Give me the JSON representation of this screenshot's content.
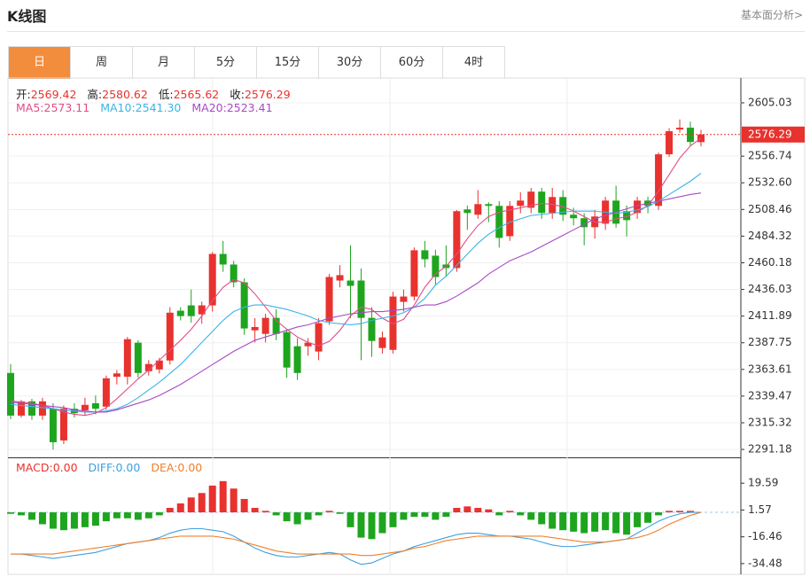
{
  "header": {
    "title": "K线图",
    "link": "基本面分析>"
  },
  "tabs": [
    "日",
    "周",
    "月",
    "5分",
    "15分",
    "30分",
    "60分",
    "4时"
  ],
  "active_tab": 0,
  "chart_data": [
    {
      "type": "candlestick",
      "ohlc_labels": [
        "开:",
        "高:",
        "低:",
        "收:"
      ],
      "up_color": "#e8322e",
      "down_color": "#1ea51e",
      "open": [
        2360.4,
        2321.8,
        2334.7,
        2321.8,
        2328.2,
        2299.3,
        2328,
        2326.6,
        2333,
        2329.9,
        2357,
        2357,
        2387.8,
        2362,
        2363.6,
        2371.7,
        2416.8,
        2421.6,
        2413.5,
        2421.6,
        2468.2,
        2458.6,
        2442.5,
        2399,
        2395.8,
        2410.3,
        2397.4,
        2384.6,
        2384.6,
        2379.8,
        2407.1,
        2444.1,
        2444.1,
        2444.1,
        2410.3,
        2383,
        2381.3,
        2424.8,
        2429.6,
        2471.5,
        2466.6,
        2458.6,
        2455.4,
        2508.5,
        2503.7,
        2513.3,
        2511.7,
        2484.3,
        2511.7,
        2510,
        2524.6,
        2505.3,
        2519.7,
        2503.7,
        2500.5,
        2492.4,
        2495.6,
        2516.5,
        2506.9,
        2505.3,
        2516.5,
        2511.7,
        2558.4,
        2580.9,
        2582.5,
        2569.42
      ],
      "high": [
        2368.5,
        2336,
        2337,
        2338,
        2333,
        2331,
        2333,
        2338,
        2340,
        2358,
        2363,
        2393,
        2390,
        2372,
        2374,
        2420,
        2420,
        2436,
        2425,
        2470,
        2480,
        2462,
        2446,
        2410,
        2414,
        2418,
        2400,
        2392,
        2392,
        2410,
        2450,
        2458,
        2476,
        2455,
        2420,
        2398,
        2434,
        2436,
        2474,
        2480,
        2472,
        2476,
        2508,
        2512,
        2526,
        2515,
        2516,
        2516,
        2524,
        2528,
        2528,
        2528,
        2526,
        2510,
        2505,
        2508,
        2520,
        2530,
        2512,
        2520,
        2520,
        2560,
        2582,
        2590,
        2588,
        2580.62
      ],
      "low": [
        2318.6,
        2320,
        2318,
        2318,
        2291,
        2296,
        2320,
        2322,
        2323,
        2327,
        2350,
        2350,
        2356,
        2358,
        2360,
        2368,
        2408,
        2406,
        2405,
        2416,
        2452,
        2438,
        2395,
        2388,
        2388,
        2390,
        2356,
        2354,
        2376,
        2372,
        2404,
        2438,
        2410,
        2372,
        2375,
        2378,
        2378,
        2416,
        2426,
        2456,
        2440,
        2448,
        2452,
        2490,
        2500,
        2497,
        2474,
        2480,
        2505,
        2505,
        2500,
        2500,
        2498,
        2494,
        2476,
        2482,
        2490,
        2492,
        2484,
        2500,
        2505,
        2508,
        2556,
        2578,
        2566,
        2565.62
      ],
      "close": [
        2321.8,
        2334.7,
        2321.8,
        2334.7,
        2297.7,
        2328.2,
        2324,
        2331.5,
        2328,
        2355.6,
        2360,
        2391,
        2360.4,
        2368.5,
        2371.7,
        2415,
        2411.9,
        2411.9,
        2421.6,
        2468.2,
        2458.6,
        2442.5,
        2400.7,
        2402,
        2410.3,
        2395.8,
        2365.3,
        2360.4,
        2387.8,
        2405.5,
        2447.3,
        2449,
        2439.3,
        2410.3,
        2389.4,
        2392.6,
        2429.6,
        2429.6,
        2471.5,
        2463.4,
        2447.3,
        2455.4,
        2506.9,
        2505.3,
        2513.3,
        2511.7,
        2482.7,
        2511.7,
        2516.5,
        2524.6,
        2505.3,
        2519.7,
        2503.7,
        2500.5,
        2492.4,
        2502.1,
        2516.5,
        2495.6,
        2498.8,
        2516.5,
        2511.7,
        2558.4,
        2579.3,
        2582.5,
        2569.6,
        2576.29
      ],
      "series": [
        {
          "name": "MA5:",
          "color": "#e24d88",
          "values": [
            2335,
            2334,
            2333,
            2331,
            2328,
            2325,
            2323,
            2322,
            2324,
            2329,
            2337,
            2346,
            2355,
            2363,
            2372,
            2381,
            2390,
            2400,
            2412,
            2426,
            2438,
            2445,
            2442,
            2432,
            2420,
            2408,
            2400,
            2393,
            2388,
            2385,
            2389,
            2399,
            2412,
            2420,
            2418,
            2410,
            2405,
            2409,
            2422,
            2438,
            2450,
            2457,
            2468,
            2482,
            2494,
            2502,
            2506,
            2508,
            2510,
            2512,
            2514,
            2513,
            2511,
            2507,
            2502,
            2497,
            2497,
            2500,
            2502,
            2506,
            2512,
            2525,
            2540,
            2555,
            2566,
            2573.11
          ]
        },
        {
          "name": "MA10:",
          "color": "#3bb4e6",
          "values": [
            2332,
            2331,
            2330,
            2329,
            2328,
            2327,
            2326,
            2325,
            2325,
            2326,
            2328,
            2332,
            2338,
            2345,
            2352,
            2360,
            2368,
            2378,
            2388,
            2398,
            2408,
            2416,
            2420,
            2422,
            2422,
            2420,
            2418,
            2415,
            2412,
            2408,
            2406,
            2405,
            2404,
            2405,
            2408,
            2410,
            2412,
            2415,
            2420,
            2428,
            2440,
            2448,
            2458,
            2468,
            2478,
            2486,
            2492,
            2497,
            2500,
            2503,
            2504,
            2505,
            2506,
            2507,
            2507,
            2507,
            2506,
            2505,
            2506,
            2508,
            2511,
            2516,
            2522,
            2528,
            2534,
            2541.3
          ]
        },
        {
          "name": "MA20:",
          "color": "#a94ac4",
          "values": [
            2334,
            2333,
            2332,
            2331,
            2330,
            2329,
            2327,
            2326,
            2325,
            2325,
            2327,
            2330,
            2333,
            2336,
            2340,
            2345,
            2350,
            2356,
            2362,
            2368,
            2374,
            2380,
            2385,
            2390,
            2393,
            2396,
            2399,
            2402,
            2404,
            2407,
            2410,
            2412,
            2414,
            2415,
            2416,
            2416,
            2417,
            2418,
            2420,
            2422,
            2422,
            2425,
            2430,
            2436,
            2442,
            2450,
            2456,
            2462,
            2466,
            2470,
            2475,
            2480,
            2485,
            2490,
            2495,
            2500,
            2503,
            2506,
            2509,
            2512,
            2514,
            2516,
            2518,
            2520,
            2522,
            2523.41
          ]
        }
      ],
      "legend_values": [
        "2573.11",
        "2541.30",
        "2523.41"
      ],
      "ylim": [
        2284,
        2627.5
      ],
      "yticks": [
        2605.03,
        2556.74,
        {
          "value": 2532.6,
          "label": "2532.60"
        },
        2508.46,
        2484.32,
        2460.18,
        2436.03,
        2411.89,
        2387.75,
        2363.61,
        2339.47,
        2315.32,
        2291.18
      ],
      "grid": true
    },
    {
      "type": "macd",
      "series": [
        {
          "name": "MACD:",
          "color": "#e8322e",
          "down_color": "#1ea51e",
          "values": [
            -1,
            -2,
            -5,
            -8,
            -11,
            -12,
            -11,
            -10,
            -9,
            -6,
            -4,
            -4,
            -5,
            -4,
            -2,
            3,
            6,
            10,
            13,
            18,
            21,
            16,
            9,
            3,
            1,
            -2,
            -6,
            -8,
            -5,
            -2,
            1,
            -1,
            -10,
            -17,
            -18,
            -14,
            -10,
            -5,
            -3,
            -3,
            -5,
            -3,
            3,
            4,
            3,
            2,
            -2,
            1,
            -2,
            -5,
            -8,
            -11,
            -12,
            -13,
            -14,
            -13,
            -12,
            -14,
            -15,
            -10,
            -7,
            -2,
            1,
            1,
            1,
            0
          ]
        },
        {
          "name": "DIFF:",
          "color": "#3ea0e0",
          "values": [
            -28,
            -28,
            -29,
            -30,
            -31,
            -30,
            -29,
            -28,
            -27,
            -25,
            -23,
            -21,
            -20,
            -19,
            -17,
            -14,
            -12,
            -11,
            -11,
            -12,
            -13,
            -16,
            -20,
            -24,
            -27,
            -29,
            -30,
            -30,
            -29,
            -28,
            -27,
            -28,
            -32,
            -35,
            -34,
            -31,
            -28,
            -26,
            -23,
            -21,
            -19,
            -17,
            -15,
            -14,
            -14,
            -15,
            -16,
            -16,
            -17,
            -18,
            -20,
            -22,
            -23,
            -23,
            -22,
            -21,
            -20,
            -19,
            -18,
            -14,
            -10,
            -6,
            -3,
            -1,
            0,
            0
          ]
        },
        {
          "name": "DEA:",
          "color": "#f07f2a",
          "values": [
            -28,
            -28,
            -28,
            -28,
            -28,
            -27,
            -26,
            -25,
            -24,
            -23,
            -22,
            -21,
            -20,
            -19,
            -18,
            -17,
            -16,
            -16,
            -16,
            -16,
            -17,
            -18,
            -20,
            -22,
            -24,
            -26,
            -27,
            -28,
            -28,
            -28,
            -28,
            -28,
            -28,
            -29,
            -29,
            -28,
            -27,
            -26,
            -24,
            -23,
            -21,
            -19,
            -18,
            -17,
            -16,
            -16,
            -16,
            -16,
            -16,
            -16,
            -16,
            -17,
            -18,
            -19,
            -20,
            -20,
            -20,
            -19,
            -18,
            -17,
            -15,
            -12,
            -8,
            -5,
            -2,
            0
          ]
        }
      ],
      "legend_values": [
        "0.00",
        "0.00",
        "0.00"
      ],
      "ylim": [
        -41.7,
        36.4
      ],
      "yticks": [
        19.59,
        1.57,
        -16.46,
        -34.48
      ]
    }
  ]
}
